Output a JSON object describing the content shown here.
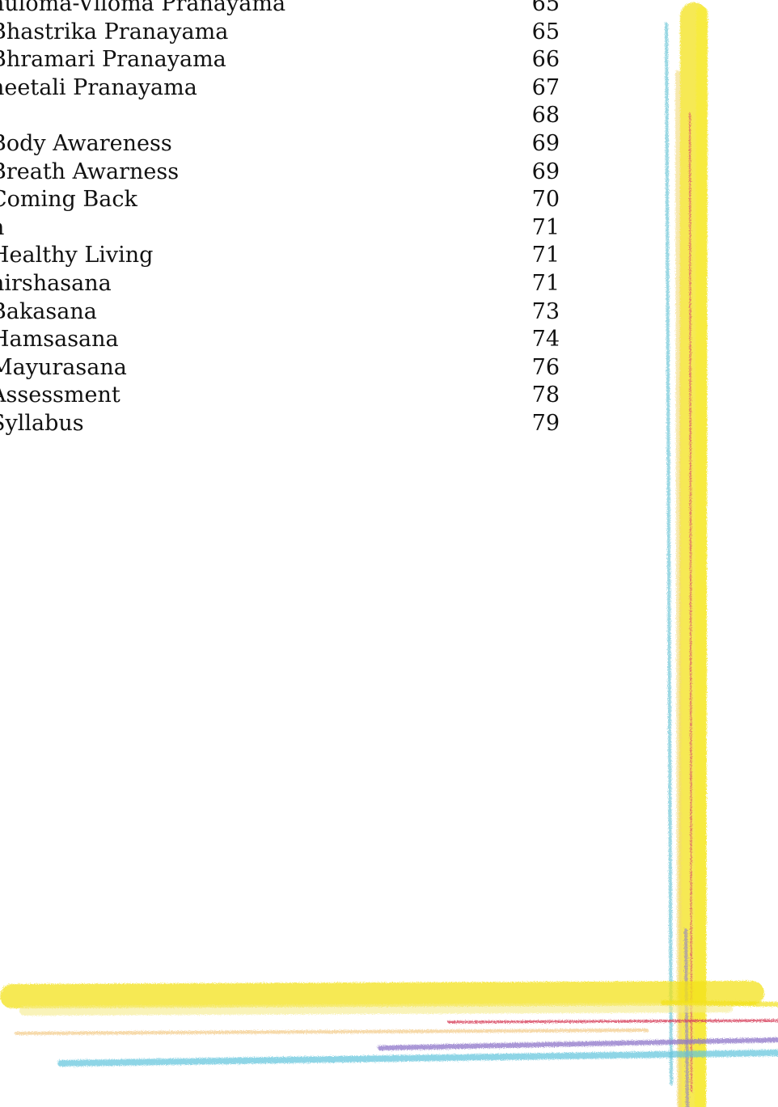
{
  "toc": {
    "entries": [
      {
        "title": "nuloma-Viloma Pranayama",
        "page": 65
      },
      {
        "title": "Bhastrika Pranayama",
        "page": 65
      },
      {
        "title": "Bhramari Pranayama",
        "page": 66
      },
      {
        "title": "heetali Pranayama",
        "page": 67
      },
      {
        "page": 68
      },
      {
        "title": "Body Awareness",
        "page": 69
      },
      {
        "title": "Breath Awarness",
        "page": 69
      },
      {
        "title": "Coming Back",
        "page": 70
      },
      {
        "title": "n",
        "page": 71
      },
      {
        "title": "Healthy Living",
        "page": 71
      },
      {
        "title": "hirshasana",
        "page": 71
      },
      {
        "title": "Bakasana",
        "page": 73
      },
      {
        "title": "Hamsasana",
        "page": 74
      },
      {
        "title": "Mayurasana",
        "page": 76
      },
      {
        "title": "Assessment",
        "page": 78
      },
      {
        "title": "Syllabus",
        "page": 79
      }
    ]
  }
}
